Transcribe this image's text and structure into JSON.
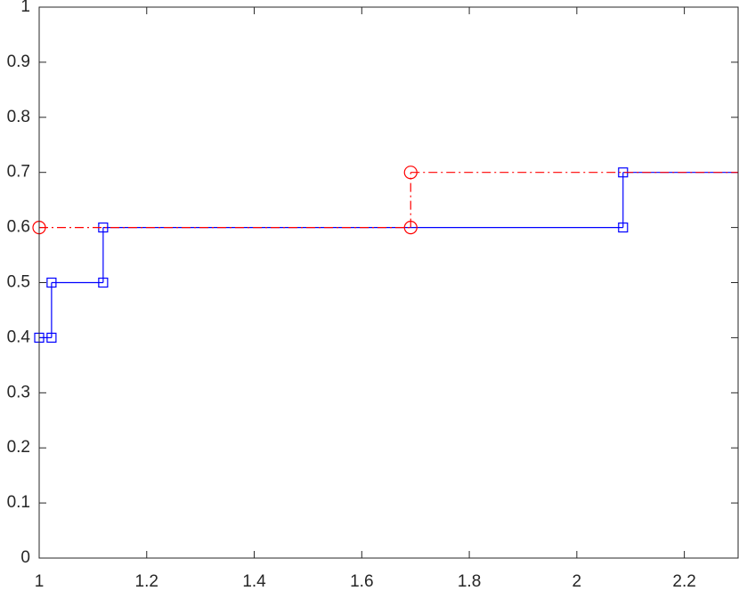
{
  "chart_data": {
    "type": "stairs",
    "series": [
      {
        "color": "#0000ff",
        "marker": "square",
        "line_style": "solid",
        "x": [
          1,
          1.023,
          1.119,
          2.086
        ],
        "values": [
          0.4,
          0.5,
          0.6,
          0.7
        ]
      },
      {
        "color": "#ff0000",
        "marker": "circle",
        "line_style": "dashdot",
        "x": [
          1,
          1.691
        ],
        "values": [
          0.6,
          0.7
        ]
      }
    ],
    "xlim": [
      1,
      2.3
    ],
    "ylim": [
      0,
      1
    ],
    "xticks": [
      1,
      1.2,
      1.4,
      1.6,
      1.8,
      2,
      2.2
    ],
    "yticks": [
      0,
      0.1,
      0.2,
      0.3,
      0.4,
      0.5,
      0.6,
      0.7,
      0.8,
      0.9,
      1
    ],
    "grid": false,
    "box": true
  }
}
